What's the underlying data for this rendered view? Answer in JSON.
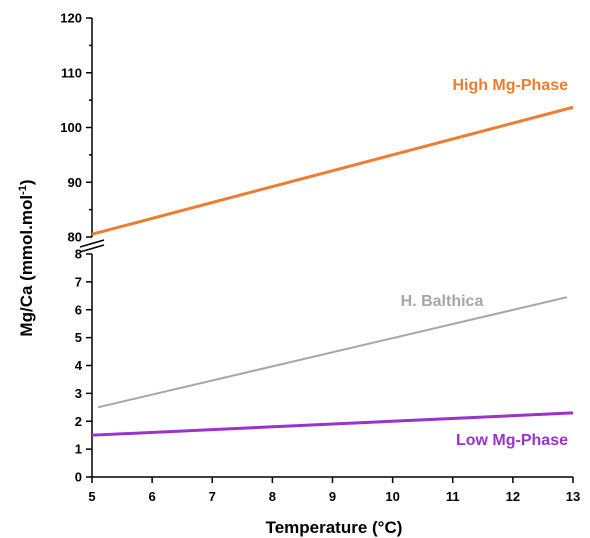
{
  "chart_data": {
    "type": "line",
    "title": "",
    "xlabel": "Temperature (°C)",
    "ylabel_main": "Mg/Ca (mmol.mol",
    "ylabel_sup": "-1",
    "ylabel_close": ")",
    "x_range": [
      5,
      13
    ],
    "x_ticks": [
      5,
      6,
      7,
      8,
      9,
      10,
      11,
      12,
      13
    ],
    "y_axis_break": "between 8 and 80",
    "y_lower_range": [
      0,
      8
    ],
    "y_lower_ticks": [
      0,
      1,
      2,
      3,
      4,
      5,
      6,
      7,
      8
    ],
    "y_upper_range": [
      80,
      120
    ],
    "y_upper_ticks": [
      80,
      90,
      100,
      110,
      120
    ],
    "grid": false,
    "legend": "none",
    "series": [
      {
        "name": "High Mg-Phase",
        "color": "#ED7D31",
        "segment": "upper",
        "x": [
          5,
          13
        ],
        "y": [
          80.5,
          103.7
        ]
      },
      {
        "name": "H. Balthica",
        "color": "#A6A6A6",
        "segment": "lower",
        "x": [
          5.1,
          12.9
        ],
        "y": [
          2.5,
          6.45
        ]
      },
      {
        "name": "Low Mg-Phase",
        "color": "#9933CC",
        "segment": "lower",
        "x": [
          5,
          13
        ],
        "y": [
          1.5,
          2.3
        ]
      }
    ]
  }
}
